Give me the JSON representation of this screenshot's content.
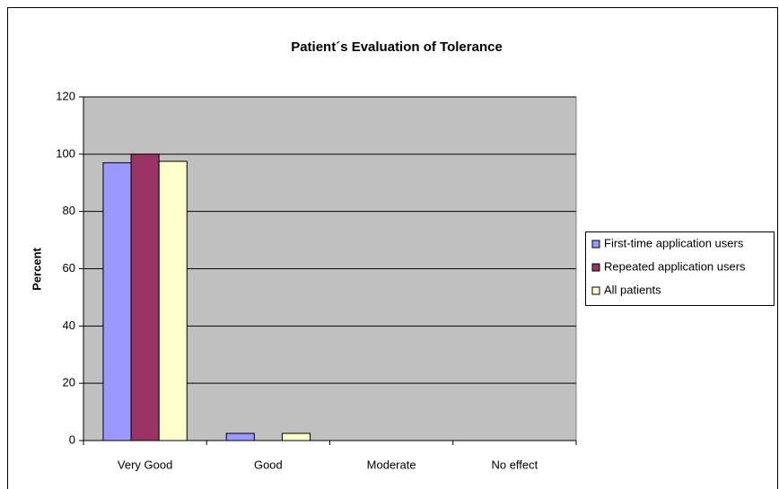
{
  "chart_data": {
    "type": "bar",
    "title": "Patient´s Evaluation of Tolerance",
    "y_label": "Percent",
    "categories": [
      "Very Good",
      "Good",
      "Moderate",
      "No effect"
    ],
    "series": [
      {
        "name": "First-time application users",
        "color": "#9999ff",
        "values": [
          97,
          2.5,
          0,
          0
        ]
      },
      {
        "name": "Repeated application users",
        "color": "#993366",
        "values": [
          100,
          0,
          0,
          0
        ]
      },
      {
        "name": "All patients",
        "color": "#ffffcc",
        "values": [
          97.5,
          2.5,
          0,
          0
        ]
      }
    ],
    "ylim": [
      0,
      120
    ],
    "yticks": [
      0,
      20,
      40,
      60,
      80,
      100,
      120
    ],
    "grid": true,
    "legend": "right"
  }
}
